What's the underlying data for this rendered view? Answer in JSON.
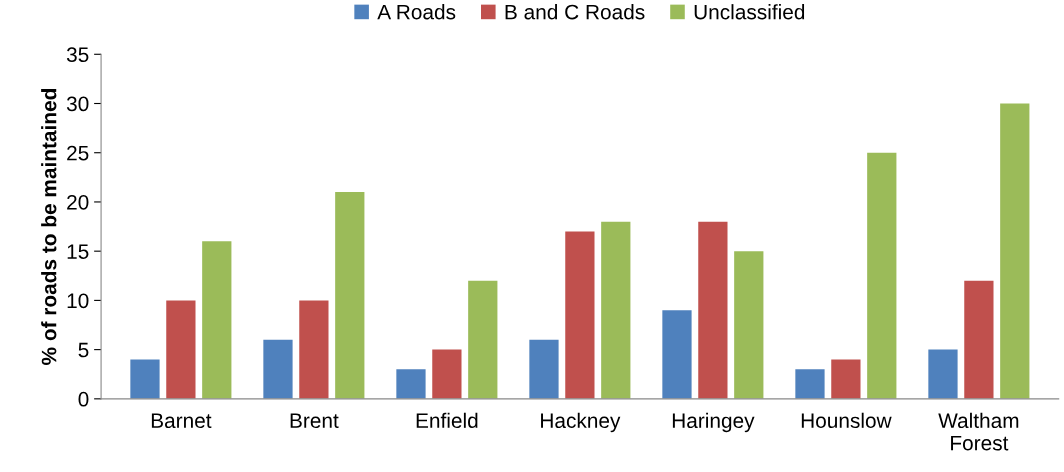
{
  "chart_data": {
    "type": "bar",
    "ylabel": "% of roads to be maintained",
    "categories": [
      "Barnet",
      "Brent",
      "Enfield",
      "Hackney",
      "Haringey",
      "Hounslow",
      "Waltham Forest"
    ],
    "series": [
      {
        "name": "A Roads",
        "color": "#4f81bd",
        "values": [
          4,
          6,
          3,
          6,
          9,
          3,
          5
        ]
      },
      {
        "name": "B and C Roads",
        "color": "#c0504d",
        "values": [
          10,
          10,
          5,
          17,
          18,
          4,
          12
        ]
      },
      {
        "name": "Unclassified",
        "color": "#9bbb59",
        "values": [
          16,
          21,
          12,
          18,
          15,
          25,
          30
        ]
      }
    ],
    "ylim": [
      0,
      35
    ],
    "yticks": [
      0,
      5,
      10,
      15,
      20,
      25,
      30,
      35
    ],
    "grid": false,
    "legend": "top"
  }
}
